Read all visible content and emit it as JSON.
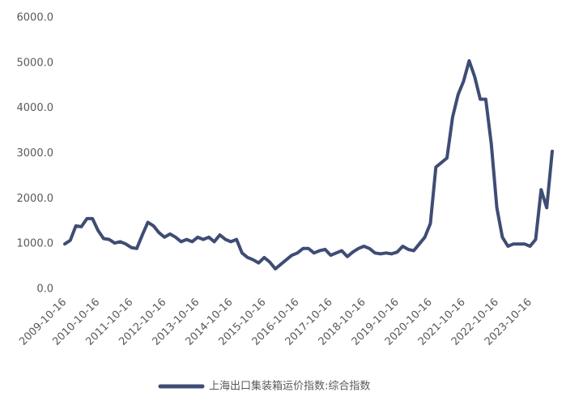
{
  "chart_data": {
    "type": "line",
    "categories": [
      "2009-10-16",
      null,
      null,
      null,
      null,
      null,
      "2010-10-16",
      null,
      null,
      null,
      null,
      null,
      "2011-10-16",
      null,
      null,
      null,
      null,
      null,
      "2012-10-16",
      null,
      null,
      null,
      null,
      null,
      "2013-10-16",
      null,
      null,
      null,
      null,
      null,
      "2014-10-16",
      null,
      null,
      null,
      null,
      null,
      "2015-10-16",
      null,
      null,
      null,
      null,
      null,
      "2016-10-16",
      null,
      null,
      null,
      null,
      null,
      "2017-10-16",
      null,
      null,
      null,
      null,
      null,
      "2018-10-16",
      null,
      null,
      null,
      null,
      null,
      "2019-10-16",
      null,
      null,
      null,
      null,
      null,
      "2020-10-16",
      null,
      null,
      null,
      null,
      null,
      "2021-10-16",
      null,
      null,
      null,
      null,
      null,
      "2022-10-16",
      null,
      null,
      null,
      null,
      null,
      "2023-10-16",
      null,
      null,
      null,
      null
    ],
    "series": [
      {
        "name": "上海出口集装箱运价指数:综合指数",
        "color": "#3f4d75",
        "values": [
          1000,
          1080,
          1400,
          1380,
          1560,
          1560,
          1300,
          1120,
          1100,
          1020,
          1050,
          1000,
          920,
          900,
          1200,
          1480,
          1400,
          1250,
          1150,
          1220,
          1150,
          1050,
          1100,
          1050,
          1150,
          1100,
          1150,
          1050,
          1200,
          1100,
          1050,
          1100,
          800,
          700,
          650,
          580,
          700,
          600,
          450,
          550,
          650,
          750,
          800,
          900,
          900,
          800,
          850,
          880,
          750,
          800,
          850,
          720,
          820,
          900,
          950,
          900,
          800,
          780,
          800,
          780,
          820,
          950,
          880,
          850,
          1000,
          1150,
          1450,
          2700,
          2800,
          2900,
          3800,
          4300,
          4600,
          5050,
          4700,
          4200,
          4200,
          3200,
          1800,
          1150,
          950,
          1000,
          1000,
          1000,
          950,
          1100,
          2200,
          1800,
          3050
        ]
      }
    ],
    "ylim": [
      0,
      6000
    ],
    "yticks": [
      {
        "value": 0,
        "label": "0.0"
      },
      {
        "value": 1000,
        "label": "1000.0"
      },
      {
        "value": 2000,
        "label": "2000.0"
      },
      {
        "value": 3000,
        "label": "3000.0"
      },
      {
        "value": 4000,
        "label": "4000.0"
      },
      {
        "value": 5000,
        "label": "5000.0"
      },
      {
        "value": 6000,
        "label": "6000.0"
      }
    ],
    "grid": false,
    "legend": "bottom"
  }
}
